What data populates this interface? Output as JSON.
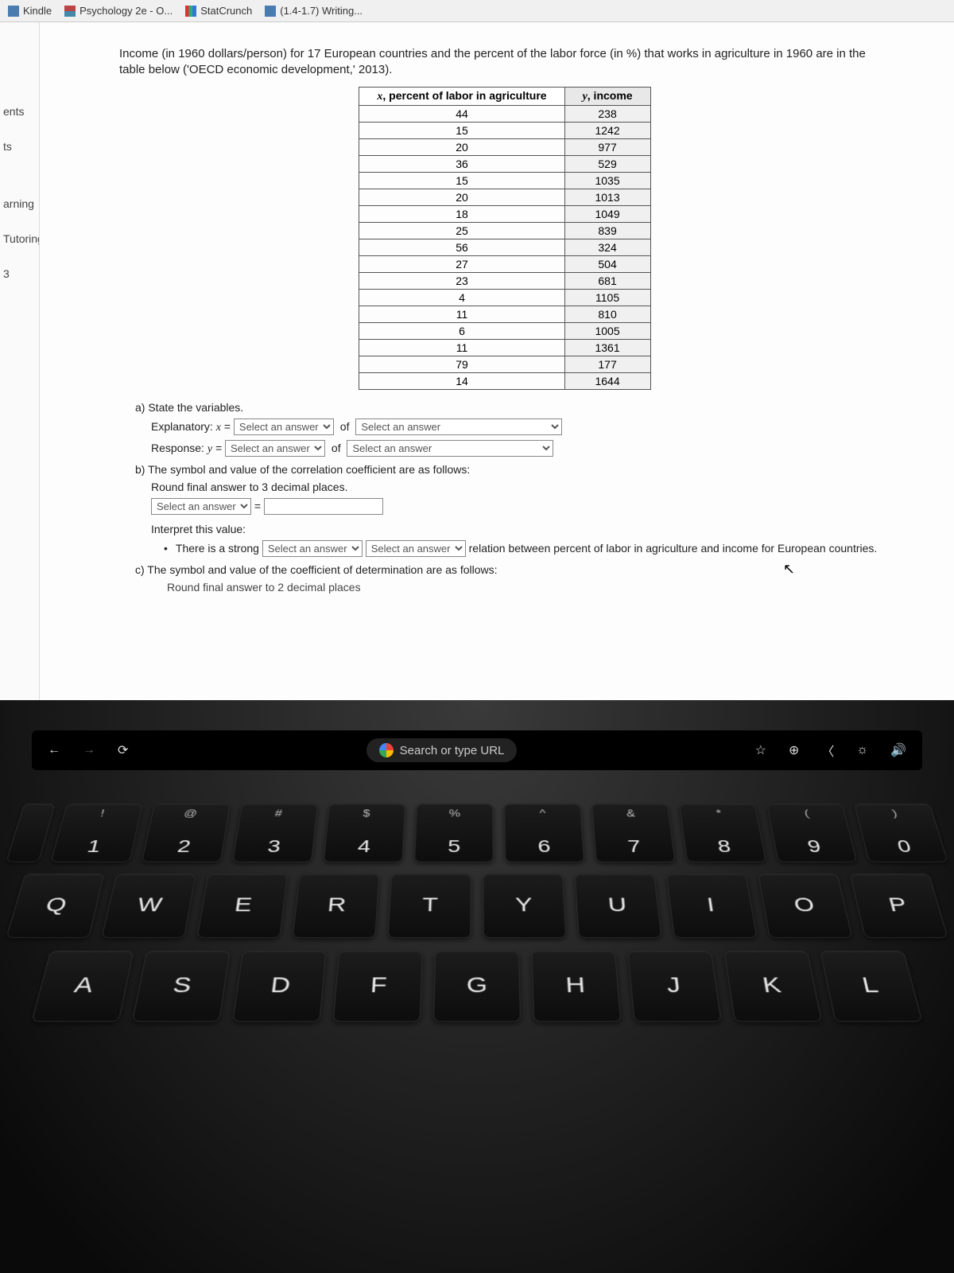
{
  "bookmarks": [
    {
      "label": "Kindle",
      "color": "#4a7cb0"
    },
    {
      "label": "Psychology 2e - O...",
      "color": "#888"
    },
    {
      "label": "StatCrunch",
      "color": "#5a9e5a"
    },
    {
      "label": "(1.4-1.7) Writing...",
      "color": "#4a7cb0"
    }
  ],
  "sidebar": {
    "items": [
      "ents",
      "ts",
      "",
      "arning",
      "Tutoring",
      "3"
    ]
  },
  "prompt": "Income (in 1960 dollars/person) for 17 European countries and the percent of the labor force (in %) that works in agriculture in 1960 are in the table below ('OECD economic development,' 2013).",
  "table": {
    "headers": {
      "x_var": "x",
      "x_label": ", percent of labor in agriculture",
      "y_var": "y",
      "y_label": ", income"
    },
    "rows": [
      [
        44,
        238
      ],
      [
        15,
        1242
      ],
      [
        20,
        977
      ],
      [
        36,
        529
      ],
      [
        15,
        1035
      ],
      [
        20,
        1013
      ],
      [
        18,
        1049
      ],
      [
        25,
        839
      ],
      [
        56,
        324
      ],
      [
        27,
        504
      ],
      [
        23,
        681
      ],
      [
        4,
        1105
      ],
      [
        11,
        810
      ],
      [
        6,
        1005
      ],
      [
        11,
        1361
      ],
      [
        79,
        177
      ],
      [
        14,
        1644
      ]
    ]
  },
  "qa": {
    "a_label": "a) State the variables.",
    "explanatory_prefix": "Explanatory: ",
    "explanatory_var": "x",
    "equals": " = ",
    "response_prefix": "Response: ",
    "response_var": "y",
    "of_word": "of",
    "select_placeholder": "Select an answer",
    "b_label": "b) The symbol and value of the correlation coefficient are as follows:",
    "b_hint": "Round final answer to 3 decimal places.",
    "interpret_label": "Interpret this value:",
    "bullet_pre": "There is a strong",
    "bullet_post": "relation between percent of labor in agriculture and income for European countries.",
    "c_label": "c) The symbol and value of the coefficient of determination are as follows:",
    "c_cutoff": "Round final answer to 2 decimal places"
  },
  "touchbar": {
    "search_placeholder": "Search or type URL"
  },
  "keyboard": {
    "row1": [
      {
        "upper": "!",
        "lower": "1"
      },
      {
        "upper": "@",
        "lower": "2"
      },
      {
        "upper": "#",
        "lower": "3"
      },
      {
        "upper": "$",
        "lower": "4"
      },
      {
        "upper": "%",
        "lower": "5"
      },
      {
        "upper": "^",
        "lower": "6"
      },
      {
        "upper": "&",
        "lower": "7"
      },
      {
        "upper": "*",
        "lower": "8"
      },
      {
        "upper": "(",
        "lower": "9"
      },
      {
        "upper": ")",
        "lower": "0"
      }
    ],
    "row2": [
      "Q",
      "W",
      "E",
      "R",
      "T",
      "Y",
      "U",
      "I",
      "O",
      "P"
    ],
    "row3": [
      "A",
      "S",
      "D",
      "F",
      "G",
      "H",
      "J",
      "K",
      "L"
    ]
  }
}
